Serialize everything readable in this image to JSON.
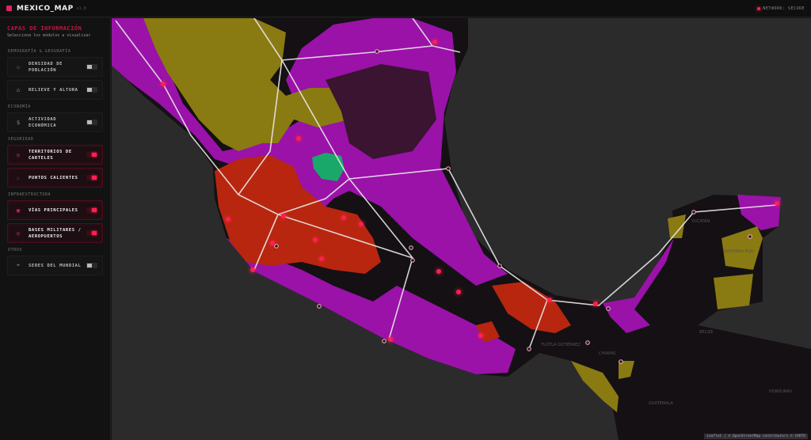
{
  "header": {
    "title": "MEXICO_MAP",
    "version": "v1.0",
    "status": "NETWORK: SECURE"
  },
  "sidebar": {
    "title": "CAPAS DE INFORMACIÓN",
    "subtitle": "Selecciona los módulos a visualizar",
    "sections": [
      {
        "label": "DEMOGRAFÍA & GEOGRAFÍA",
        "items": [
          {
            "label": "DENSIDAD DE POBLACIÓN",
            "icon": "people-icon",
            "on": false
          },
          {
            "label": "RELIEVE Y ALTURA",
            "icon": "mountain-icon",
            "on": false
          }
        ]
      },
      {
        "label": "ECONOMÍA",
        "items": [
          {
            "label": "ACTIVIDAD ECONÓMICA",
            "icon": "dollar-icon",
            "on": false
          }
        ]
      },
      {
        "label": "SEGURIDAD",
        "items": [
          {
            "label": "TERRITORIOS DE CARTELES",
            "icon": "target-icon",
            "on": true
          },
          {
            "label": "PUNTOS CALIENTES",
            "icon": "flame-icon",
            "on": true
          }
        ]
      },
      {
        "label": "INFRAESTRUCTURA",
        "items": [
          {
            "label": "VÍAS PRINCIPALES",
            "icon": "road-icon",
            "on": true
          },
          {
            "label": "BASES MILITARES / AEROPUERTOS",
            "icon": "shield-icon",
            "on": true
          }
        ]
      },
      {
        "label": "OTROS",
        "items": [
          {
            "label": "SEDES DEL MUNDIAL",
            "icon": "pin-icon",
            "on": false
          }
        ]
      }
    ]
  },
  "map": {
    "attribution": "Leaflet | © OpenStreetMap contributors © CARTO",
    "labels": [
      "GUATEMALA",
      "BELIZE",
      "HONDURAS",
      "CHIAPAS",
      "YUCATÁN",
      "QUINTANA ROO",
      "TUXTLA GUTIÉRREZ"
    ],
    "colors": {
      "cartel_a": "#9a12a8",
      "cartel_b": "#8a7a12",
      "cartel_c": "#b8260f",
      "cartel_d": "#1aa86a",
      "hotspot": "#ff2050",
      "road": "#e8e8e8"
    }
  }
}
